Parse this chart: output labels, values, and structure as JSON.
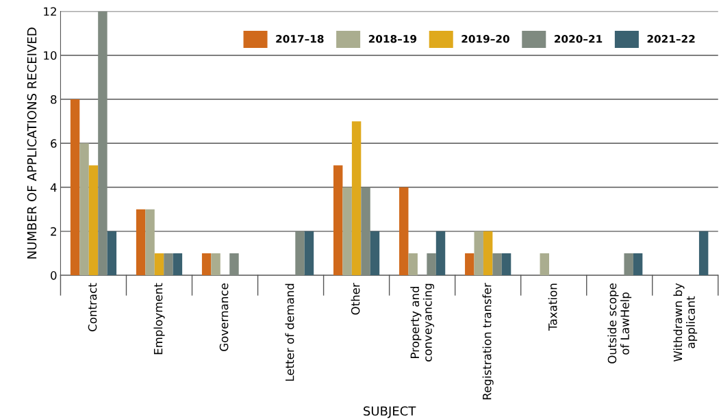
{
  "chart_data": {
    "type": "bar",
    "xlabel": "SUBJECT",
    "ylabel": "NUMBER OF APPLICATIONS RECEIVED",
    "categories": [
      "Contract",
      "Employment",
      "Governance",
      "Letter of demand",
      "Other",
      "Property and\nconveyancing",
      "Registration transfer",
      "Taxation",
      "Outside scope\nof LawHelp",
      "Withdrawn by\napplicant"
    ],
    "series": [
      {
        "name": "2017–18",
        "color": "#d0691b",
        "values": [
          8,
          3,
          1,
          null,
          5,
          4,
          1,
          null,
          null,
          null
        ]
      },
      {
        "name": "2018–19",
        "color": "#aaad8f",
        "values": [
          6,
          3,
          1,
          null,
          4,
          1,
          2,
          1,
          null,
          null
        ]
      },
      {
        "name": "2019–20",
        "color": "#dfa91c",
        "values": [
          5,
          1,
          null,
          null,
          7,
          null,
          2,
          null,
          null,
          null
        ]
      },
      {
        "name": "2020–21",
        "color": "#7f8a80",
        "values": [
          12,
          1,
          1,
          2,
          4,
          1,
          1,
          null,
          1,
          null
        ]
      },
      {
        "name": "2021–22",
        "color": "#3a6170",
        "values": [
          2,
          1,
          null,
          2,
          2,
          2,
          1,
          null,
          1,
          2
        ]
      }
    ],
    "ylim": [
      0,
      12
    ],
    "yticks": [
      0,
      2,
      4,
      6,
      8,
      10,
      12
    ],
    "grid": "y",
    "legend": "top right"
  }
}
